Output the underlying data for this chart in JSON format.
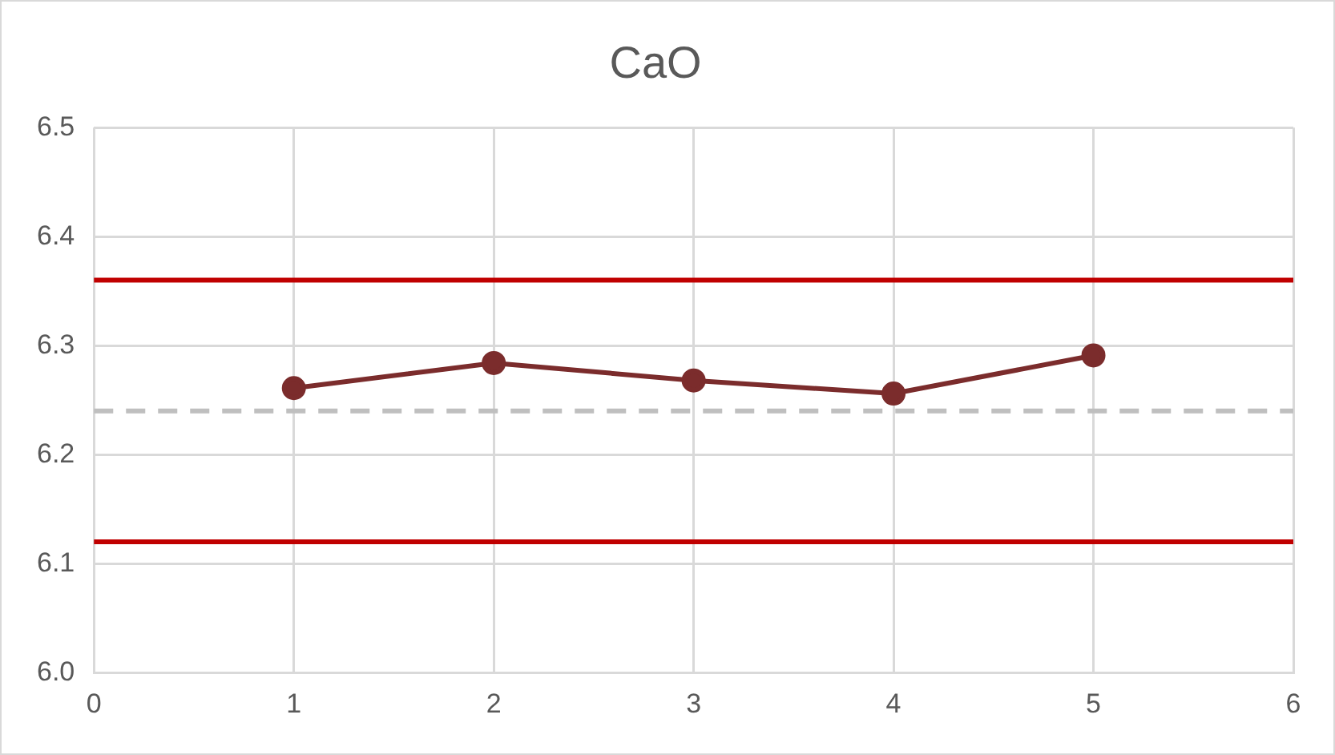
{
  "chart_data": {
    "type": "line",
    "title": "CaO",
    "x": [
      1,
      2,
      3,
      4,
      5
    ],
    "series": [
      {
        "color": "#7b2c2c",
        "values": [
          6.261,
          6.284,
          6.268,
          6.256,
          6.291
        ]
      }
    ],
    "xlim": [
      0,
      6
    ],
    "xticks": [
      0,
      1,
      2,
      3,
      4,
      5,
      6
    ],
    "ylim": [
      6.0,
      6.5
    ],
    "yticks": [
      {
        "value": 6.0,
        "label": "6.0"
      },
      {
        "value": 6.1,
        "label": "6.1"
      },
      {
        "value": 6.2,
        "label": "6.2"
      },
      {
        "value": 6.3,
        "label": "6.3"
      },
      {
        "value": 6.4,
        "label": "6.4"
      },
      {
        "value": 6.5,
        "label": "6.5"
      }
    ],
    "ref_lines": [
      {
        "axis": "y",
        "value": 6.36,
        "color": "#c00000",
        "line_style": "solid"
      },
      {
        "axis": "y",
        "value": 6.12,
        "color": "#c00000",
        "line_style": "solid"
      },
      {
        "axis": "y",
        "value": 6.24,
        "color": "#bfbfbf",
        "line_style": "dashed"
      }
    ],
    "grid": true,
    "marker": "circle",
    "line_style": "solid"
  }
}
